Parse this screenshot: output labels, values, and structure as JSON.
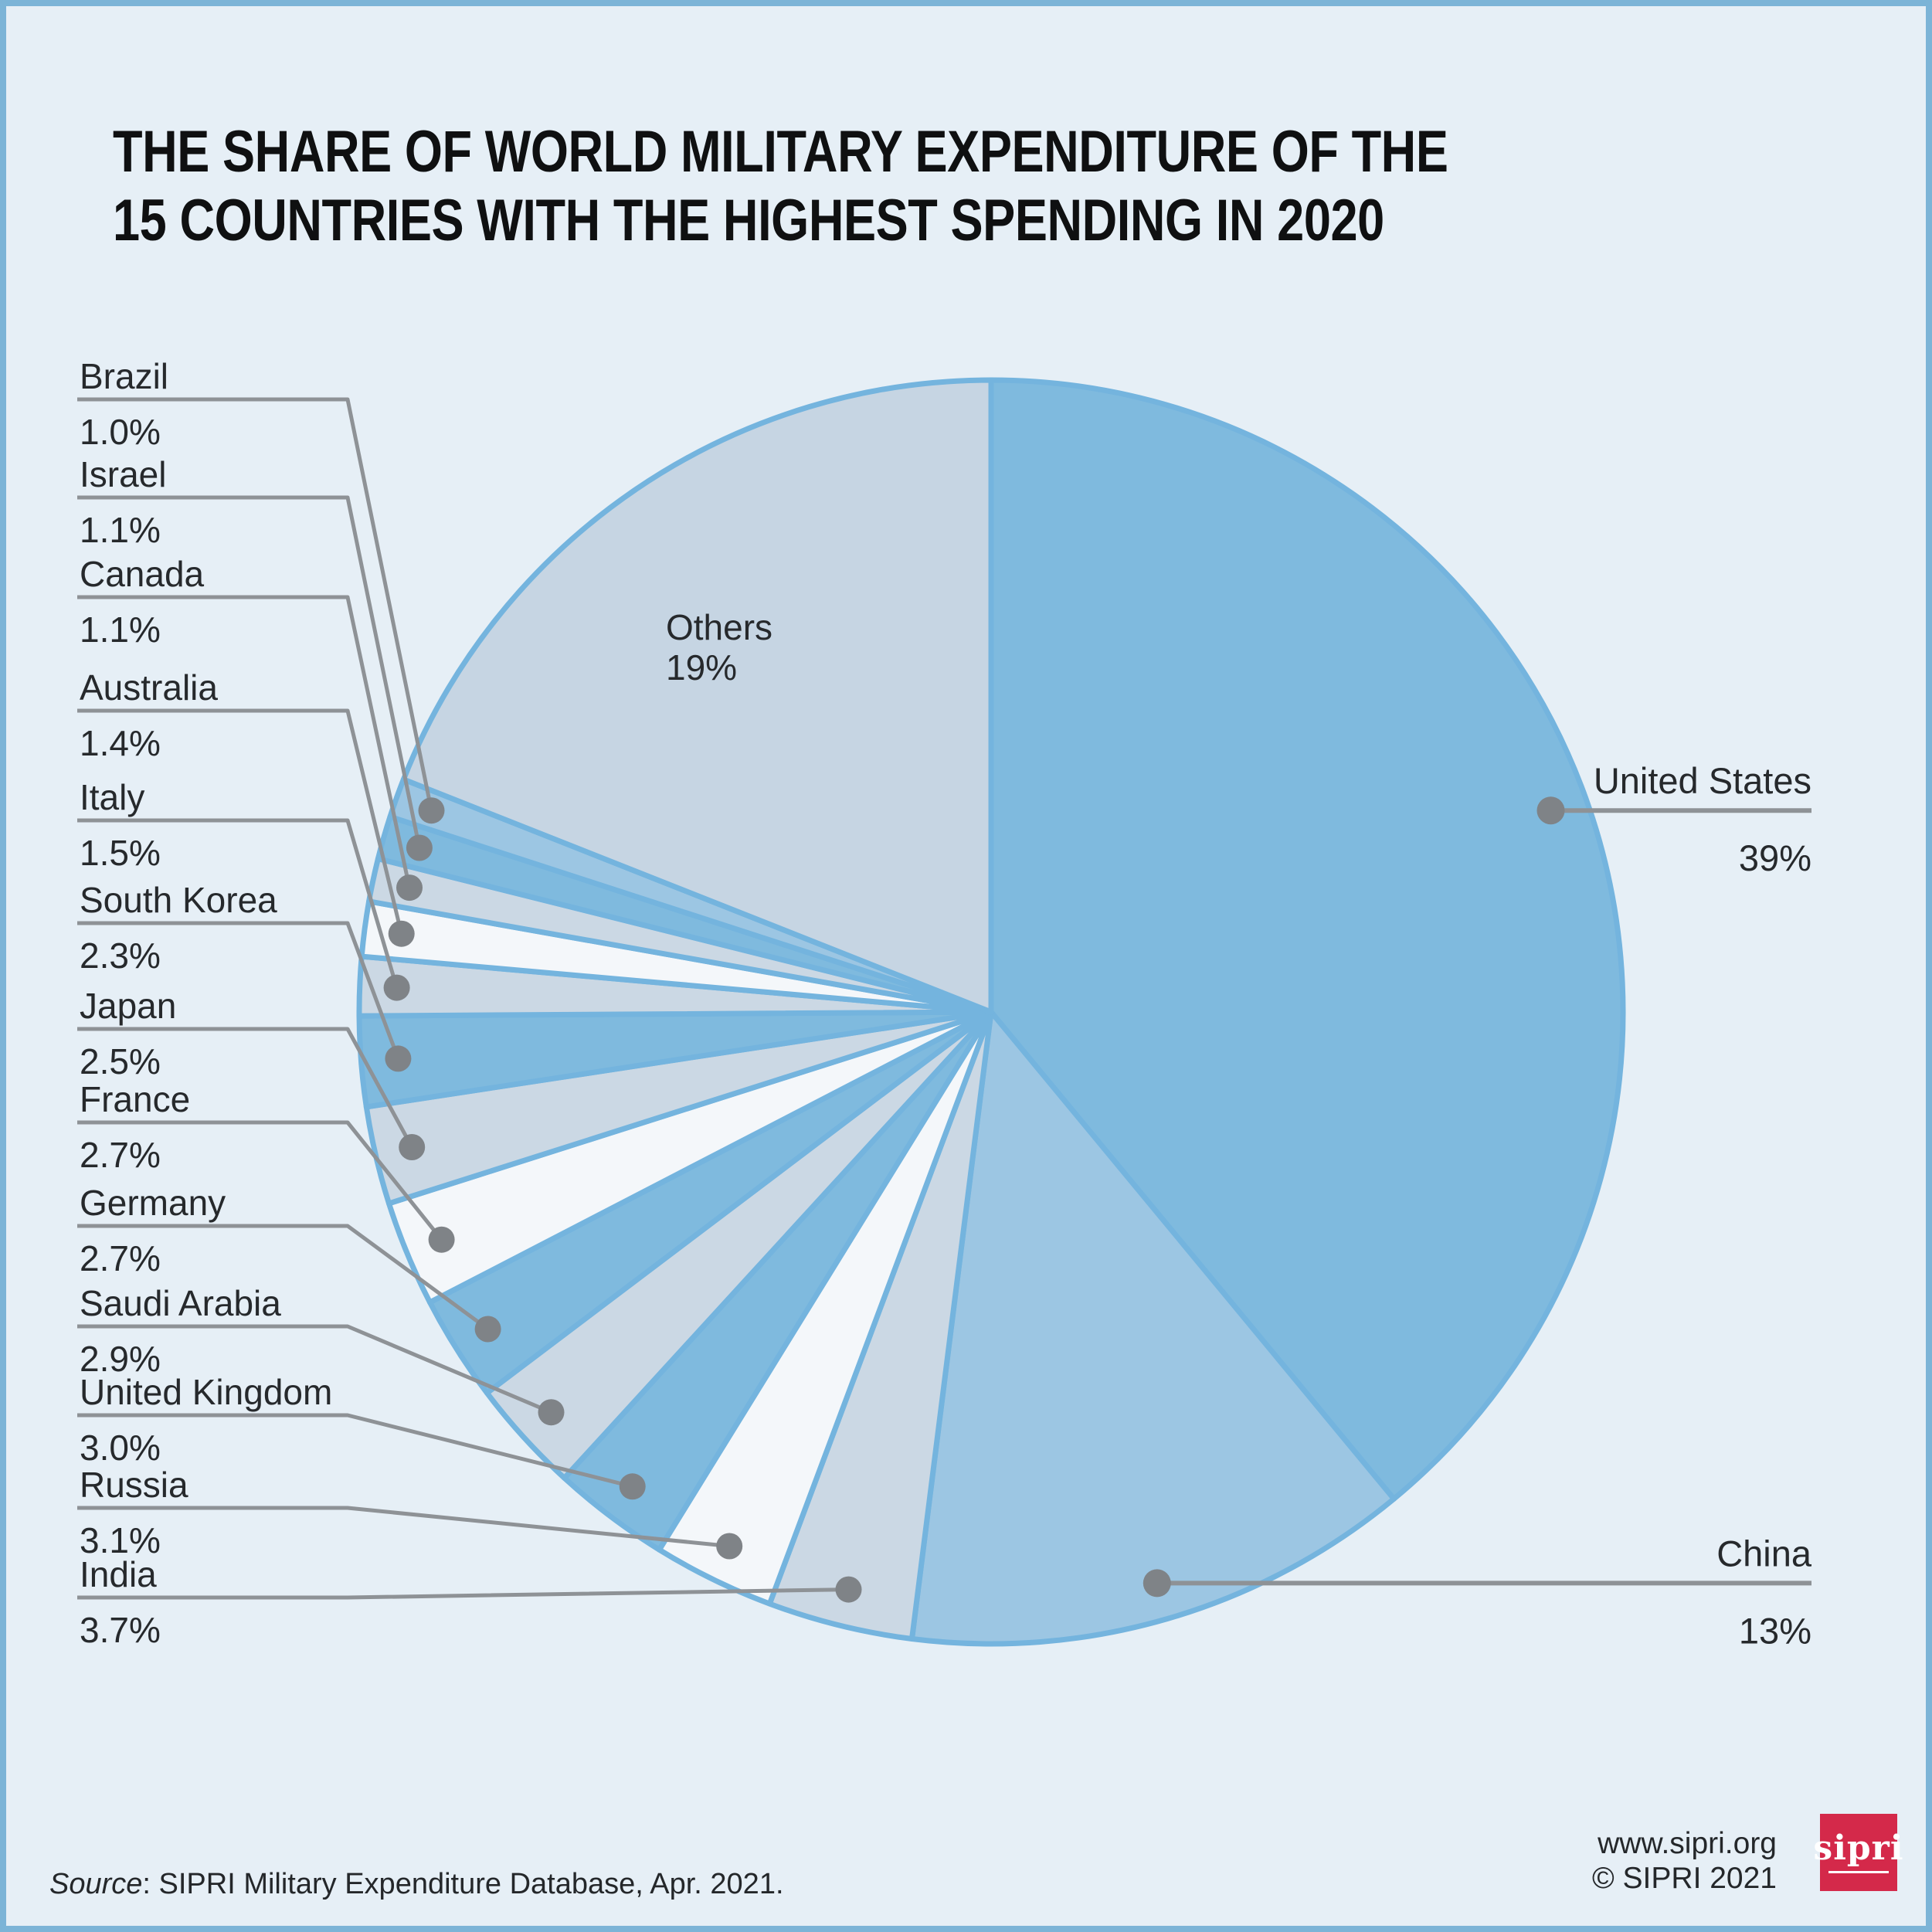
{
  "page": {
    "background": "#e6eff6",
    "frame_color": "#7cb4d7",
    "leader_line_color": "#8e9296",
    "leader_dot_color": "#7f8387",
    "text_color": "#26292c"
  },
  "title": {
    "line1": "THE SHARE OF WORLD MILITARY EXPENDITURE OF THE",
    "line2": "15 COUNTRIES WITH THE HIGHEST SPENDING IN 2020"
  },
  "chart_data": {
    "type": "pie",
    "title": "The share of world military expenditure of the 15 countries with the highest spending in 2020",
    "unit": "percent share of world military expenditure",
    "direction": "clockwise",
    "start_angle_deg": 0,
    "stroke_color": "#74b4de",
    "palette": {
      "medium_blue": "#7fbade",
      "light_blue": "#9cc6e3",
      "gray_blue": "#cbd8e4",
      "white": "#f4f7fa",
      "others_gray": "#c6d5e3"
    },
    "slices": [
      {
        "label": "United States",
        "value": 39,
        "display": "39%",
        "color": "#7fbade",
        "label_side": "right"
      },
      {
        "label": "China",
        "value": 13,
        "display": "13%",
        "color": "#9cc6e3",
        "label_side": "right"
      },
      {
        "label": "India",
        "value": 3.7,
        "display": "3.7%",
        "color": "#cbd8e4",
        "label_side": "left"
      },
      {
        "label": "Russia",
        "value": 3.1,
        "display": "3.1%",
        "color": "#f4f7fa",
        "label_side": "left"
      },
      {
        "label": "United Kingdom",
        "value": 3.0,
        "display": "3.0%",
        "color": "#7fbade",
        "label_side": "left"
      },
      {
        "label": "Saudi Arabia",
        "value": 2.9,
        "display": "2.9%",
        "color": "#cbd8e4",
        "label_side": "left"
      },
      {
        "label": "Germany",
        "value": 2.7,
        "display": "2.7%",
        "color": "#7fbade",
        "label_side": "left"
      },
      {
        "label": "France",
        "value": 2.7,
        "display": "2.7%",
        "color": "#f4f7fa",
        "label_side": "left"
      },
      {
        "label": "Japan",
        "value": 2.5,
        "display": "2.5%",
        "color": "#cbd8e4",
        "label_side": "left"
      },
      {
        "label": "South Korea",
        "value": 2.3,
        "display": "2.3%",
        "color": "#7fbade",
        "label_side": "left"
      },
      {
        "label": "Italy",
        "value": 1.5,
        "display": "1.5%",
        "color": "#cbd8e4",
        "label_side": "left"
      },
      {
        "label": "Australia",
        "value": 1.4,
        "display": "1.4%",
        "color": "#f4f7fa",
        "label_side": "left"
      },
      {
        "label": "Canada",
        "value": 1.1,
        "display": "1.1%",
        "color": "#cbd8e4",
        "label_side": "left"
      },
      {
        "label": "Israel",
        "value": 1.1,
        "display": "1.1%",
        "color": "#7fbade",
        "label_side": "left"
      },
      {
        "label": "Brazil",
        "value": 1.0,
        "display": "1.0%",
        "color": "#9cc6e3",
        "label_side": "left"
      },
      {
        "label": "Others",
        "value": 19,
        "display": "19%",
        "color": "#c6d5e3",
        "label_side": "inside"
      }
    ]
  },
  "footer": {
    "source_prefix": "Source",
    "source_rest": ": SIPRI Military Expenditure Database, Apr. 2021.",
    "website": "www.sipri.org",
    "copyright": "© SIPRI 2021",
    "logo_text": "sipri",
    "logo_color": "#d4294a"
  }
}
